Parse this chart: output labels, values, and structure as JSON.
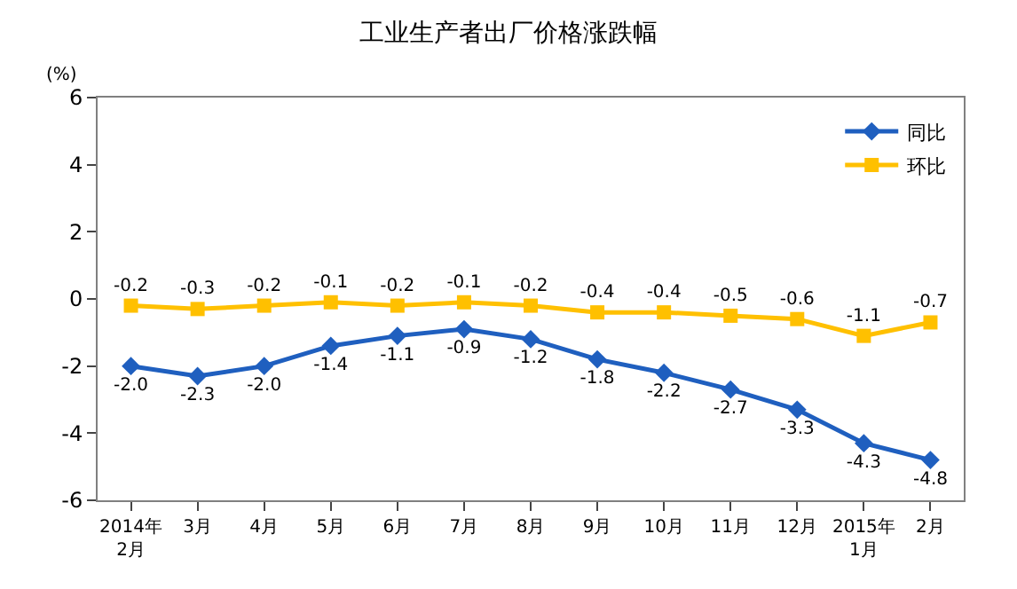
{
  "chart_data": {
    "type": "line",
    "title": "工业生产者出厂价格涨跌幅",
    "ylabel": "(%)",
    "categories": [
      "2014年\n2月",
      "3月",
      "4月",
      "5月",
      "6月",
      "7月",
      "8月",
      "9月",
      "10月",
      "11月",
      "12月",
      "2015年\n1月",
      "2月"
    ],
    "series": [
      {
        "name": "同比",
        "color": "#1f5fbf",
        "marker": "diamond",
        "values": [
          -2.0,
          -2.3,
          -2.0,
          -1.4,
          -1.1,
          -0.9,
          -1.2,
          -1.8,
          -2.2,
          -2.7,
          -3.3,
          -4.3,
          -4.8
        ],
        "value_labels": [
          "-2.0",
          "-2.3",
          "-2.0",
          "-1.4",
          "-1.1",
          "-0.9",
          "-1.2",
          "-1.8",
          "-2.2",
          "-2.7",
          "-3.3",
          "-4.3",
          "-4.8"
        ]
      },
      {
        "name": "环比",
        "color": "#ffc000",
        "marker": "square",
        "values": [
          -0.2,
          -0.3,
          -0.2,
          -0.1,
          -0.2,
          -0.1,
          -0.2,
          -0.4,
          -0.4,
          -0.5,
          -0.6,
          -1.1,
          -0.7
        ],
        "value_labels": [
          "-0.2",
          "-0.3",
          "-0.2",
          "-0.1",
          "-0.2",
          "-0.1",
          "-0.2",
          "-0.4",
          "-0.4",
          "-0.5",
          "-0.6",
          "-1.1",
          "-0.7"
        ]
      }
    ],
    "ylim": [
      -6,
      6
    ],
    "yticks": [
      -6,
      -4,
      -2,
      0,
      2,
      4,
      6
    ],
    "legend": "top right",
    "line_style": "solid"
  }
}
